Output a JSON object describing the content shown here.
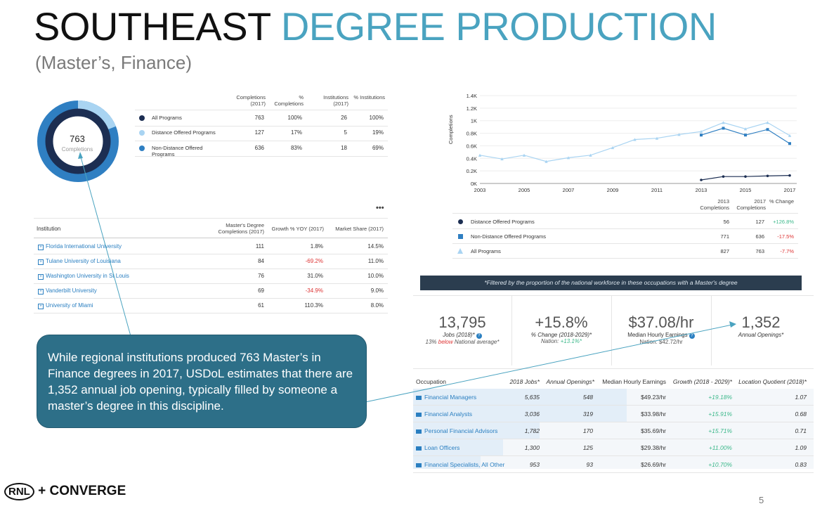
{
  "title": {
    "part1": "SOUTHEAST",
    "part2": "DEGREE PRODUCTION"
  },
  "subtitle": "(Master’s, Finance)",
  "donut": {
    "value": "763",
    "label": "Completions"
  },
  "summary_table": {
    "headers": [
      "Completions (2017)",
      "% Completions",
      "Institutions (2017)",
      "% Institutions"
    ],
    "rows": [
      {
        "label": "All Programs",
        "completions": "763",
        "pct_completions": "100%",
        "institutions": "26",
        "pct_institutions": "100%",
        "color": "#1c2e52"
      },
      {
        "label": "Distance Offered Programs",
        "completions": "127",
        "pct_completions": "17%",
        "institutions": "5",
        "pct_institutions": "19%",
        "color": "#a9d4f2"
      },
      {
        "label": "Non-Distance Offered Programs",
        "completions": "636",
        "pct_completions": "83%",
        "institutions": "18",
        "pct_institutions": "69%",
        "color": "#2f7fc2"
      }
    ]
  },
  "more_menu": "•••",
  "institution_table": {
    "headers": [
      "Institution",
      "Master's Degree Completions (2017)",
      "Growth % YOY (2017)",
      "Market Share (2017)"
    ],
    "rows": [
      {
        "name": "Florida International University",
        "completions": "111",
        "growth": "1.8%",
        "share": "14.5%"
      },
      {
        "name": "Tulane University of Louisiana",
        "completions": "84",
        "growth": "-69.2%",
        "share": "11.0%"
      },
      {
        "name": "Washington University in St Louis",
        "completions": "76",
        "growth": "31.0%",
        "share": "10.0%"
      },
      {
        "name": "Vanderbilt University",
        "completions": "69",
        "growth": "-34.9%",
        "share": "9.0%"
      },
      {
        "name": "University of Miami",
        "completions": "61",
        "growth": "110.3%",
        "share": "8.0%"
      }
    ]
  },
  "chart_data": {
    "type": "line",
    "ylabel": "Completions",
    "ylim": [
      0,
      1400
    ],
    "yticks": [
      "0K",
      "0.2K",
      "0.4K",
      "0.6K",
      "0.8K",
      "1K",
      "1.2K",
      "1.4K"
    ],
    "xticks": [
      "2003",
      "2005",
      "2007",
      "2009",
      "2011",
      "2013",
      "2015",
      "2017"
    ],
    "series": [
      {
        "name": "All Programs",
        "color": "#a9d4f2",
        "x": [
          2003,
          2004,
          2005,
          2006,
          2007,
          2008,
          2009,
          2010,
          2011,
          2012,
          2013,
          2014,
          2015,
          2016,
          2017
        ],
        "values": [
          450,
          390,
          450,
          350,
          410,
          450,
          570,
          700,
          720,
          780,
          827,
          970,
          870,
          970,
          763
        ]
      },
      {
        "name": "Non-Distance Offered Programs",
        "color": "#2f7fc2",
        "x": [
          2013,
          2014,
          2015,
          2016,
          2017
        ],
        "values": [
          771,
          880,
          771,
          860,
          636
        ]
      },
      {
        "name": "Distance Offered Programs",
        "color": "#1c2e52",
        "x": [
          2013,
          2014,
          2015,
          2016,
          2017
        ],
        "values": [
          56,
          110,
          110,
          120,
          127
        ]
      }
    ]
  },
  "trend_table": {
    "headers": [
      "2013 Completions",
      "2017 Completions",
      "% Change"
    ],
    "rows": [
      {
        "label": "Distance Offered Programs",
        "v2013": "56",
        "v2017": "127",
        "change": "+126.8%",
        "shape": "circle",
        "color": "#1c2e52",
        "sign": "pos"
      },
      {
        "label": "Non-Distance Offered Programs",
        "v2013": "771",
        "v2017": "636",
        "change": "-17.5%",
        "shape": "square",
        "color": "#2f7fc2",
        "sign": "neg"
      },
      {
        "label": "All Programs",
        "v2013": "827",
        "v2017": "763",
        "change": "-7.7%",
        "shape": "triangle",
        "color": "#a9d4f2",
        "sign": "neg"
      }
    ]
  },
  "banner": "*Filtered by the proportion of the national workforce in these occupations with a Master's degree",
  "stats": [
    {
      "value": "13,795",
      "label": "Jobs (2018)*",
      "sub_pre": "13%",
      "sub_red": "below",
      "sub_post": "National average*"
    },
    {
      "value": "+15.8%",
      "label": "% Change (2018-2029)*",
      "sub_pre": "Nation:",
      "sub_green": "+13.1%*"
    },
    {
      "value": "$37.08/hr",
      "label": "Median Hourly Earnings",
      "sub_pre": "Nation: $42.72/hr"
    },
    {
      "value": "1,352",
      "label": "Annual Openings*"
    }
  ],
  "occupation_table": {
    "headers": [
      "Occupation",
      "2018 Jobs*",
      "Annual Openings*",
      "Median Hourly Earnings",
      "Growth (2018 - 2029)*",
      "Location Quotient (2018)*"
    ],
    "rows": [
      {
        "name": "Financial Managers",
        "jobs": "5,635",
        "openings": "548",
        "earnings": "$49.23/hr",
        "growth": "+19.18%",
        "lq": "1.07"
      },
      {
        "name": "Financial Analysts",
        "jobs": "3,036",
        "openings": "319",
        "earnings": "$33.98/hr",
        "growth": "+15.91%",
        "lq": "0.68"
      },
      {
        "name": "Personal Financial Advisors",
        "jobs": "1,782",
        "openings": "170",
        "earnings": "$35.69/hr",
        "growth": "+15.71%",
        "lq": "0.71"
      },
      {
        "name": "Loan Officers",
        "jobs": "1,300",
        "openings": "125",
        "earnings": "$29.38/hr",
        "growth": "+11.00%",
        "lq": "1.09"
      },
      {
        "name": "Financial Specialists, All Other",
        "jobs": "953",
        "openings": "93",
        "earnings": "$26.69/hr",
        "growth": "+10.70%",
        "lq": "0.83"
      }
    ]
  },
  "callout": "While regional institutions produced 763 Master’s in Finance degrees in 2017, USDoL estimates that there are 1,352 annual job opening, typically filled by someone a master’s degree in this discipline.",
  "logo": {
    "left": "RNL",
    "plus": "+",
    "right": "CONVERGE"
  },
  "page_number": "5"
}
